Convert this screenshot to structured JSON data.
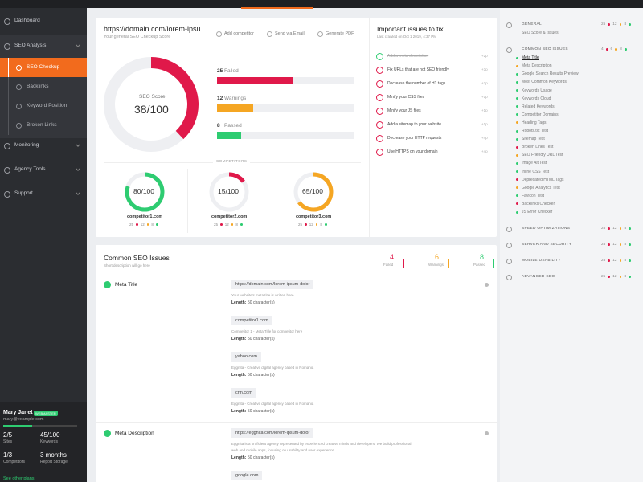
{
  "status_colors": [
    "#e0194a",
    "#f5a623",
    "#2ecc71"
  ],
  "sidebar": {
    "menu": [
      {
        "label": "Dashboard"
      },
      {
        "label": "SEO Analysis",
        "children": [
          "SEO Checkup",
          "Backlinks",
          "Keyword Position",
          "Broken Links"
        ]
      },
      {
        "label": "Monitoring"
      },
      {
        "label": "Agency Tools"
      },
      {
        "label": "Support"
      }
    ],
    "active_child": 0,
    "user": {
      "name": "Mary Janet",
      "badge": "WEBMASTER",
      "email": "mary@example.com",
      "stats": [
        {
          "value": "2/5",
          "label": "Sites"
        },
        {
          "value": "45/100",
          "label": "Keywords"
        },
        {
          "value": "1/3",
          "label": "Competitors"
        },
        {
          "value": "3 months",
          "label": "Report Storage"
        }
      ],
      "link": "See other plans"
    }
  },
  "score_card": {
    "url": "https://domain.com/lorem-ipsu...",
    "subtitle": "Your general SEO Checkup Score",
    "actions": [
      "Add competitor",
      "Send via Email",
      "Generate PDF"
    ],
    "score_title": "SEO Score",
    "score": {
      "value": 38,
      "label": "38/100"
    },
    "lim": [
      0,
      100
    ],
    "bars": [
      {
        "count": 25,
        "label": "Failed"
      },
      {
        "count": 12,
        "label": "Warnings"
      },
      {
        "count": 8,
        "label": "Passed"
      }
    ],
    "competitors_title": "COMPETITORS",
    "competitors": [
      {
        "name": "competitor1.com",
        "score": {
          "value": 80,
          "label": "80/100"
        },
        "color": "#2ecc71",
        "counts": [
          25,
          12,
          8
        ]
      },
      {
        "name": "competitor2.com",
        "score": {
          "value": 15,
          "label": "15/100"
        },
        "color": "#e0194a",
        "counts": [
          25,
          12,
          8
        ]
      },
      {
        "name": "competitor3.com",
        "score": {
          "value": 65,
          "label": "65/100"
        },
        "color": "#f5a623",
        "counts": [
          25,
          12,
          8
        ]
      }
    ]
  },
  "issues": {
    "title": "Important issues to fix",
    "subtitle": "Last crawled on Oct 1 2019, 4:37 PM",
    "items": [
      {
        "label": "Add a meta description",
        "done": true,
        "points": "+2p"
      },
      {
        "label": "Fix URLs that are not SEO friendly",
        "done": false,
        "points": "+3p"
      },
      {
        "label": "Decrease the number of H1 tags",
        "done": false,
        "points": "+3p"
      },
      {
        "label": "Minify your CSS files",
        "done": false,
        "points": "+1p"
      },
      {
        "label": "Minify your JS files",
        "done": false,
        "points": "+1p"
      },
      {
        "label": "Add a sitemap to your website",
        "done": false,
        "points": "+1p"
      },
      {
        "label": "Decrease your HTTP requests",
        "done": false,
        "points": "+4p"
      },
      {
        "label": "Use HTTPS on your domain",
        "done": false,
        "points": "+4p"
      }
    ]
  },
  "common": {
    "title": "Common SEO Issues",
    "subtitle": "Short description will go here",
    "length_label": "Length:",
    "counters": [
      {
        "count": 4,
        "label": "Failed"
      },
      {
        "count": 6,
        "label": "Warnings"
      },
      {
        "count": 8,
        "label": "Passed"
      }
    ],
    "sections": [
      {
        "title": "Meta Title",
        "entries": [
          {
            "url": "https://domain.com/lorem-ipsum-dolor",
            "text": "Your website's meta title is written here",
            "length": "50 character(s)"
          },
          {
            "url": "competitor1.com",
            "text": "Competitor 1 - Meta Title for competitor here",
            "length": "50 character(s)"
          },
          {
            "url": "yahoo.com",
            "text": "Eggnita - Creative digital agency based in Romania",
            "length": "50 character(s)"
          },
          {
            "url": "cnn.com",
            "text": "Eggnita - Creative digital agency based in Romania",
            "length": "50 character(s)"
          }
        ]
      },
      {
        "title": "Meta Description",
        "entries": [
          {
            "url": "https://eggnita.com/lorem-ipsum-dolor",
            "text": "Eggnita is a proficient agency represented by experienced creative minds and developers. We build professional web and mobile apps, focusing on usability and user experience.",
            "length": "50 character(s)"
          },
          {
            "url": "google.com",
            "text": "",
            "length": ""
          }
        ]
      }
    ]
  },
  "panel": {
    "sections": [
      {
        "title": "GENERAL",
        "counts": [
          25,
          12,
          8
        ],
        "items": [
          {
            "label": "SEO Score & Issues"
          }
        ]
      },
      {
        "title": "COMMON SEO ISSUES",
        "counts": [
          4,
          6,
          8
        ],
        "active_item": 0,
        "items": [
          {
            "label": "Meta Title",
            "status": 2
          },
          {
            "label": "Meta Description",
            "status": 1
          },
          {
            "label": "Google Search Results Preview",
            "status": 2
          },
          {
            "label": "Most Common Keywords",
            "status": 2
          },
          {
            "label": "Keywords Usage",
            "status": 2
          },
          {
            "label": "Keywords Cloud",
            "status": 2
          },
          {
            "label": "Related Keywords",
            "status": 2
          },
          {
            "label": "Competitor Domains",
            "status": 2
          },
          {
            "label": "Heading Tags",
            "status": 1
          },
          {
            "label": "Robots.txt Test",
            "status": 2
          },
          {
            "label": "Sitemap Test",
            "status": 2
          },
          {
            "label": "Broken Links Test",
            "status": 0
          },
          {
            "label": "SEO Friendly URL Test",
            "status": 1
          },
          {
            "label": "Image Alt Test",
            "status": 2
          },
          {
            "label": "Inline CSS Test",
            "status": 2
          },
          {
            "label": "Deprecated HTML Tags",
            "status": 0
          },
          {
            "label": "Google Analytics Test",
            "status": 1
          },
          {
            "label": "Favicon Test",
            "status": 2
          },
          {
            "label": "Backlinks Checker",
            "status": 0
          },
          {
            "label": "JS Error Checker",
            "status": 2
          }
        ]
      },
      {
        "title": "SPEED OPTIMIZATIONS",
        "counts": [
          25,
          12,
          8
        ],
        "items": []
      },
      {
        "title": "SERVER AND SECURITY",
        "counts": [
          25,
          12,
          8
        ],
        "items": []
      },
      {
        "title": "MOBILE USABILITY",
        "counts": [
          25,
          12,
          8
        ],
        "items": []
      },
      {
        "title": "ADVANCED SEO",
        "counts": [
          25,
          12,
          8
        ],
        "items": []
      }
    ]
  }
}
